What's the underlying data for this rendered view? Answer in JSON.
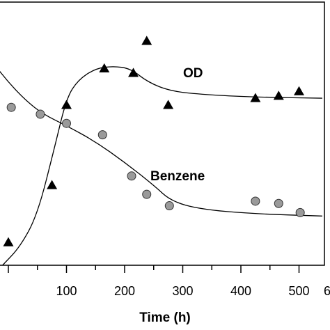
{
  "chart_data": {
    "type": "scatter",
    "xlabel": "Time (h)",
    "ylabel": "",
    "xlim": [
      -60,
      605
    ],
    "ylim_od": [
      0,
      1.15
    ],
    "ylim_benzene": [
      0,
      1.15
    ],
    "x_ticks": [
      "100",
      "200",
      "300",
      "400",
      "500"
    ],
    "x_tick_values": [
      100,
      200,
      300,
      400,
      500
    ],
    "x_tick_partial": "6",
    "series": [
      {
        "name": "OD",
        "marker": "triangle",
        "color": "#000000",
        "points": [
          {
            "x": 0,
            "y": 0.1
          },
          {
            "x": 75,
            "y": 0.35
          },
          {
            "x": 100,
            "y": 0.7
          },
          {
            "x": 165,
            "y": 0.86
          },
          {
            "x": 215,
            "y": 0.84
          },
          {
            "x": 238,
            "y": 0.98
          },
          {
            "x": 275,
            "y": 0.7
          },
          {
            "x": 425,
            "y": 0.73
          },
          {
            "x": 465,
            "y": 0.74
          },
          {
            "x": 500,
            "y": 0.76
          }
        ],
        "fit": [
          {
            "x": -10,
            "y": 0.0
          },
          {
            "x": 20,
            "y": 0.08
          },
          {
            "x": 50,
            "y": 0.22
          },
          {
            "x": 80,
            "y": 0.52
          },
          {
            "x": 100,
            "y": 0.73
          },
          {
            "x": 120,
            "y": 0.81
          },
          {
            "x": 150,
            "y": 0.86
          },
          {
            "x": 180,
            "y": 0.87
          },
          {
            "x": 210,
            "y": 0.86
          },
          {
            "x": 240,
            "y": 0.8
          },
          {
            "x": 280,
            "y": 0.76
          },
          {
            "x": 340,
            "y": 0.745
          },
          {
            "x": 420,
            "y": 0.735
          },
          {
            "x": 540,
            "y": 0.73
          }
        ]
      },
      {
        "name": "Benzene",
        "marker": "circle",
        "color": "#9a9a9a",
        "points": [
          {
            "x": 5,
            "y": 0.69
          },
          {
            "x": 55,
            "y": 0.66
          },
          {
            "x": 100,
            "y": 0.62
          },
          {
            "x": 162,
            "y": 0.57
          },
          {
            "x": 212,
            "y": 0.39
          },
          {
            "x": 238,
            "y": 0.31
          },
          {
            "x": 277,
            "y": 0.26
          },
          {
            "x": 425,
            "y": 0.28
          },
          {
            "x": 465,
            "y": 0.27
          },
          {
            "x": 502,
            "y": 0.23
          }
        ],
        "fit": [
          {
            "x": -25,
            "y": 0.88
          },
          {
            "x": 0,
            "y": 0.8
          },
          {
            "x": 30,
            "y": 0.72
          },
          {
            "x": 60,
            "y": 0.66
          },
          {
            "x": 100,
            "y": 0.61
          },
          {
            "x": 150,
            "y": 0.54
          },
          {
            "x": 200,
            "y": 0.45
          },
          {
            "x": 250,
            "y": 0.35
          },
          {
            "x": 280,
            "y": 0.28
          },
          {
            "x": 330,
            "y": 0.245
          },
          {
            "x": 420,
            "y": 0.225
          },
          {
            "x": 540,
            "y": 0.215
          }
        ]
      }
    ],
    "annotations": [
      "OD",
      "Benzene"
    ]
  }
}
